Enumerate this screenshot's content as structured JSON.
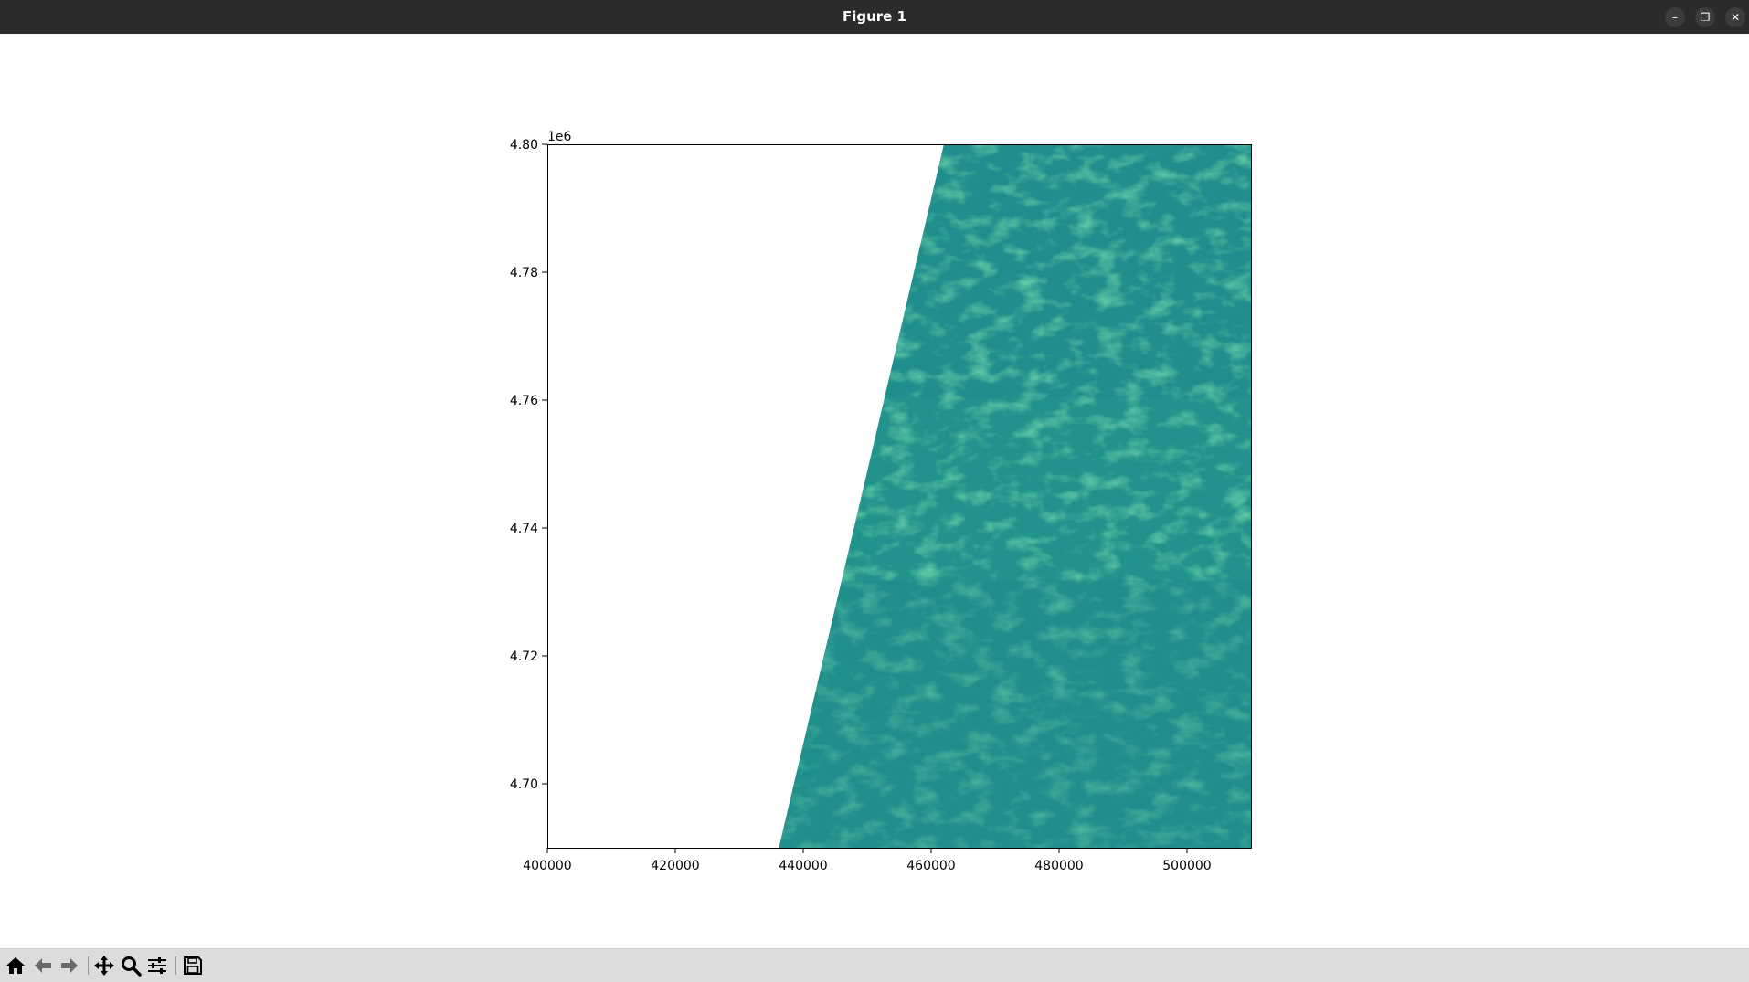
{
  "window": {
    "title": "Figure 1",
    "controls": {
      "minimize": "–",
      "restore": "❐",
      "close": "✕"
    }
  },
  "chart_data": {
    "type": "heatmap",
    "title": "",
    "xlabel": "",
    "ylabel": "",
    "xlim": [
      400000,
      510000
    ],
    "ylim": [
      4690000,
      4800000
    ],
    "x_ticks": [
      "400000",
      "420000",
      "440000",
      "460000",
      "480000",
      "500000"
    ],
    "y_ticks": [
      "4.70",
      "4.72",
      "4.74",
      "4.76",
      "4.78",
      "4.80"
    ],
    "y_offset_label": "1e6",
    "grid": false,
    "colormap": "viridis",
    "colors": {
      "base": "#21928c",
      "bright": "#3fbc73",
      "mid": "#2aa383",
      "dark": "#1f8a8c",
      "nodata": "#ffffff"
    },
    "data_region": {
      "left_edge_top_x": 462000,
      "left_edge_bottom_x": 436200
    }
  },
  "toolbar": {
    "icons": [
      "home-icon",
      "back-arrow-icon",
      "forward-arrow-icon",
      "pan-icon",
      "zoom-icon",
      "configure-subplots-icon",
      "save-icon"
    ]
  }
}
